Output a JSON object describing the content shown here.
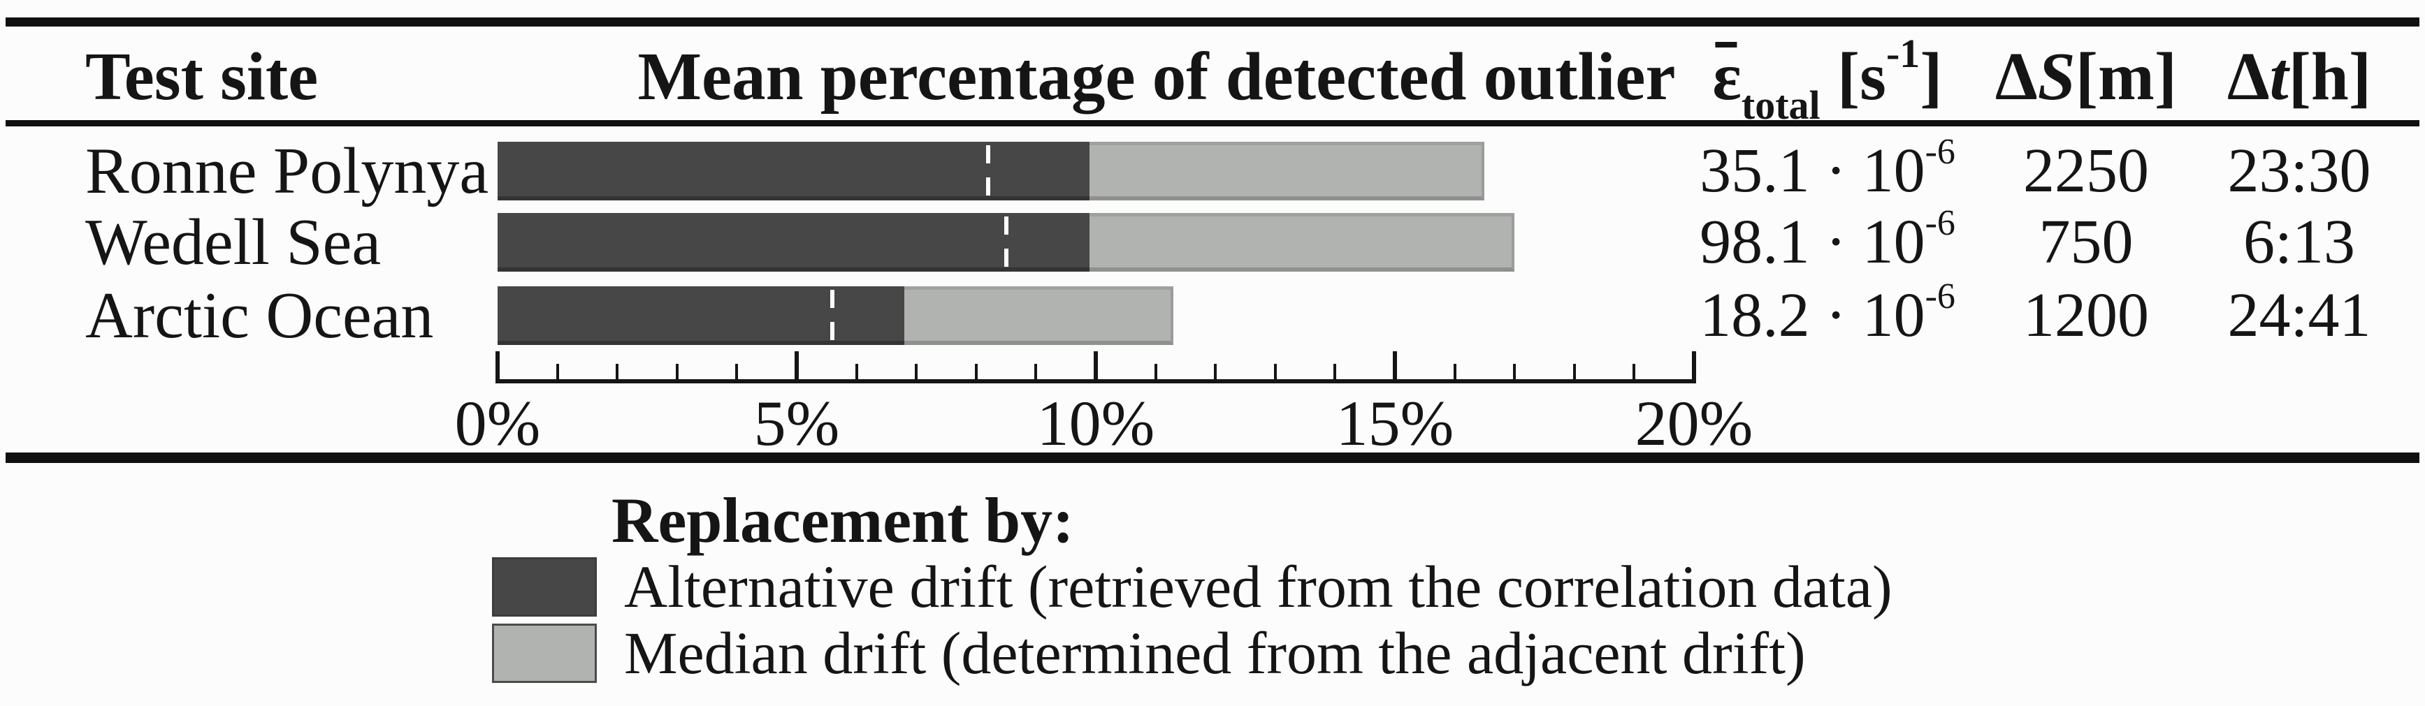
{
  "table": {
    "headers": {
      "test_site": "Test site",
      "chart_title": "Mean percentage of detected outlier",
      "epsilon": {
        "symbol": "ε",
        "sub": "total",
        "open": " [s",
        "sup": "-1",
        "close": "]"
      },
      "delta_s": {
        "prefix": "Δ",
        "var": "S",
        "unit": "[m]"
      },
      "delta_t": {
        "prefix": "Δ",
        "var": "t",
        "unit": "[h]"
      }
    },
    "rows": [
      {
        "site": "Ronne Polynya",
        "epsilon_mantissa": "35.1 · 10",
        "epsilon_exp": "-6",
        "delta_s": "2250",
        "delta_t": "23:30"
      },
      {
        "site": "Wedell Sea",
        "epsilon_mantissa": "98.1 · 10",
        "epsilon_exp": "-6",
        "delta_s": "750",
        "delta_t": "6:13"
      },
      {
        "site": "Arctic Ocean",
        "epsilon_mantissa": "18.2 · 10",
        "epsilon_exp": "-6",
        "delta_s": "1200",
        "delta_t": "24:41"
      }
    ]
  },
  "chart_data": {
    "type": "bar",
    "orientation": "horizontal",
    "stacked": true,
    "title": "Mean percentage of detected outlier",
    "categories": [
      "Ronne Polynya",
      "Wedell Sea",
      "Arctic Ocean"
    ],
    "series": [
      {
        "name": "Alternative drift (retrieved from the correlation data)",
        "color": "#474747",
        "values": [
          9.9,
          9.9,
          6.8
        ]
      },
      {
        "name": "Median drift (determined from the adjacent drift)",
        "color": "#b1b3b0",
        "values": [
          6.6,
          7.1,
          4.5
        ]
      }
    ],
    "stack_totals": [
      16.5,
      17.0,
      11.3
    ],
    "dashed_marker_values": [
      8.2,
      8.5,
      5.6
    ],
    "dashed_marker_color": "#ffffff",
    "xlim": [
      0,
      20
    ],
    "major_tick_step": 5,
    "minor_tick_step": 1,
    "tick_labels": [
      "0%",
      "5%",
      "10%",
      "15%",
      "20%"
    ],
    "grid": false,
    "legend_position": "below"
  },
  "legend": {
    "title": "Replacement by:",
    "items": [
      {
        "swatch_color": "#474747",
        "label": "Alternative drift (retrieved from the correlation data)"
      },
      {
        "swatch_color": "#b1b3b0",
        "label": "Median drift (determined from the adjacent drift)"
      }
    ]
  },
  "colors": {
    "rule": "#101010",
    "background": "#fcfcfc",
    "dark_segment": "#474747",
    "light_segment": "#b1b3b0"
  }
}
